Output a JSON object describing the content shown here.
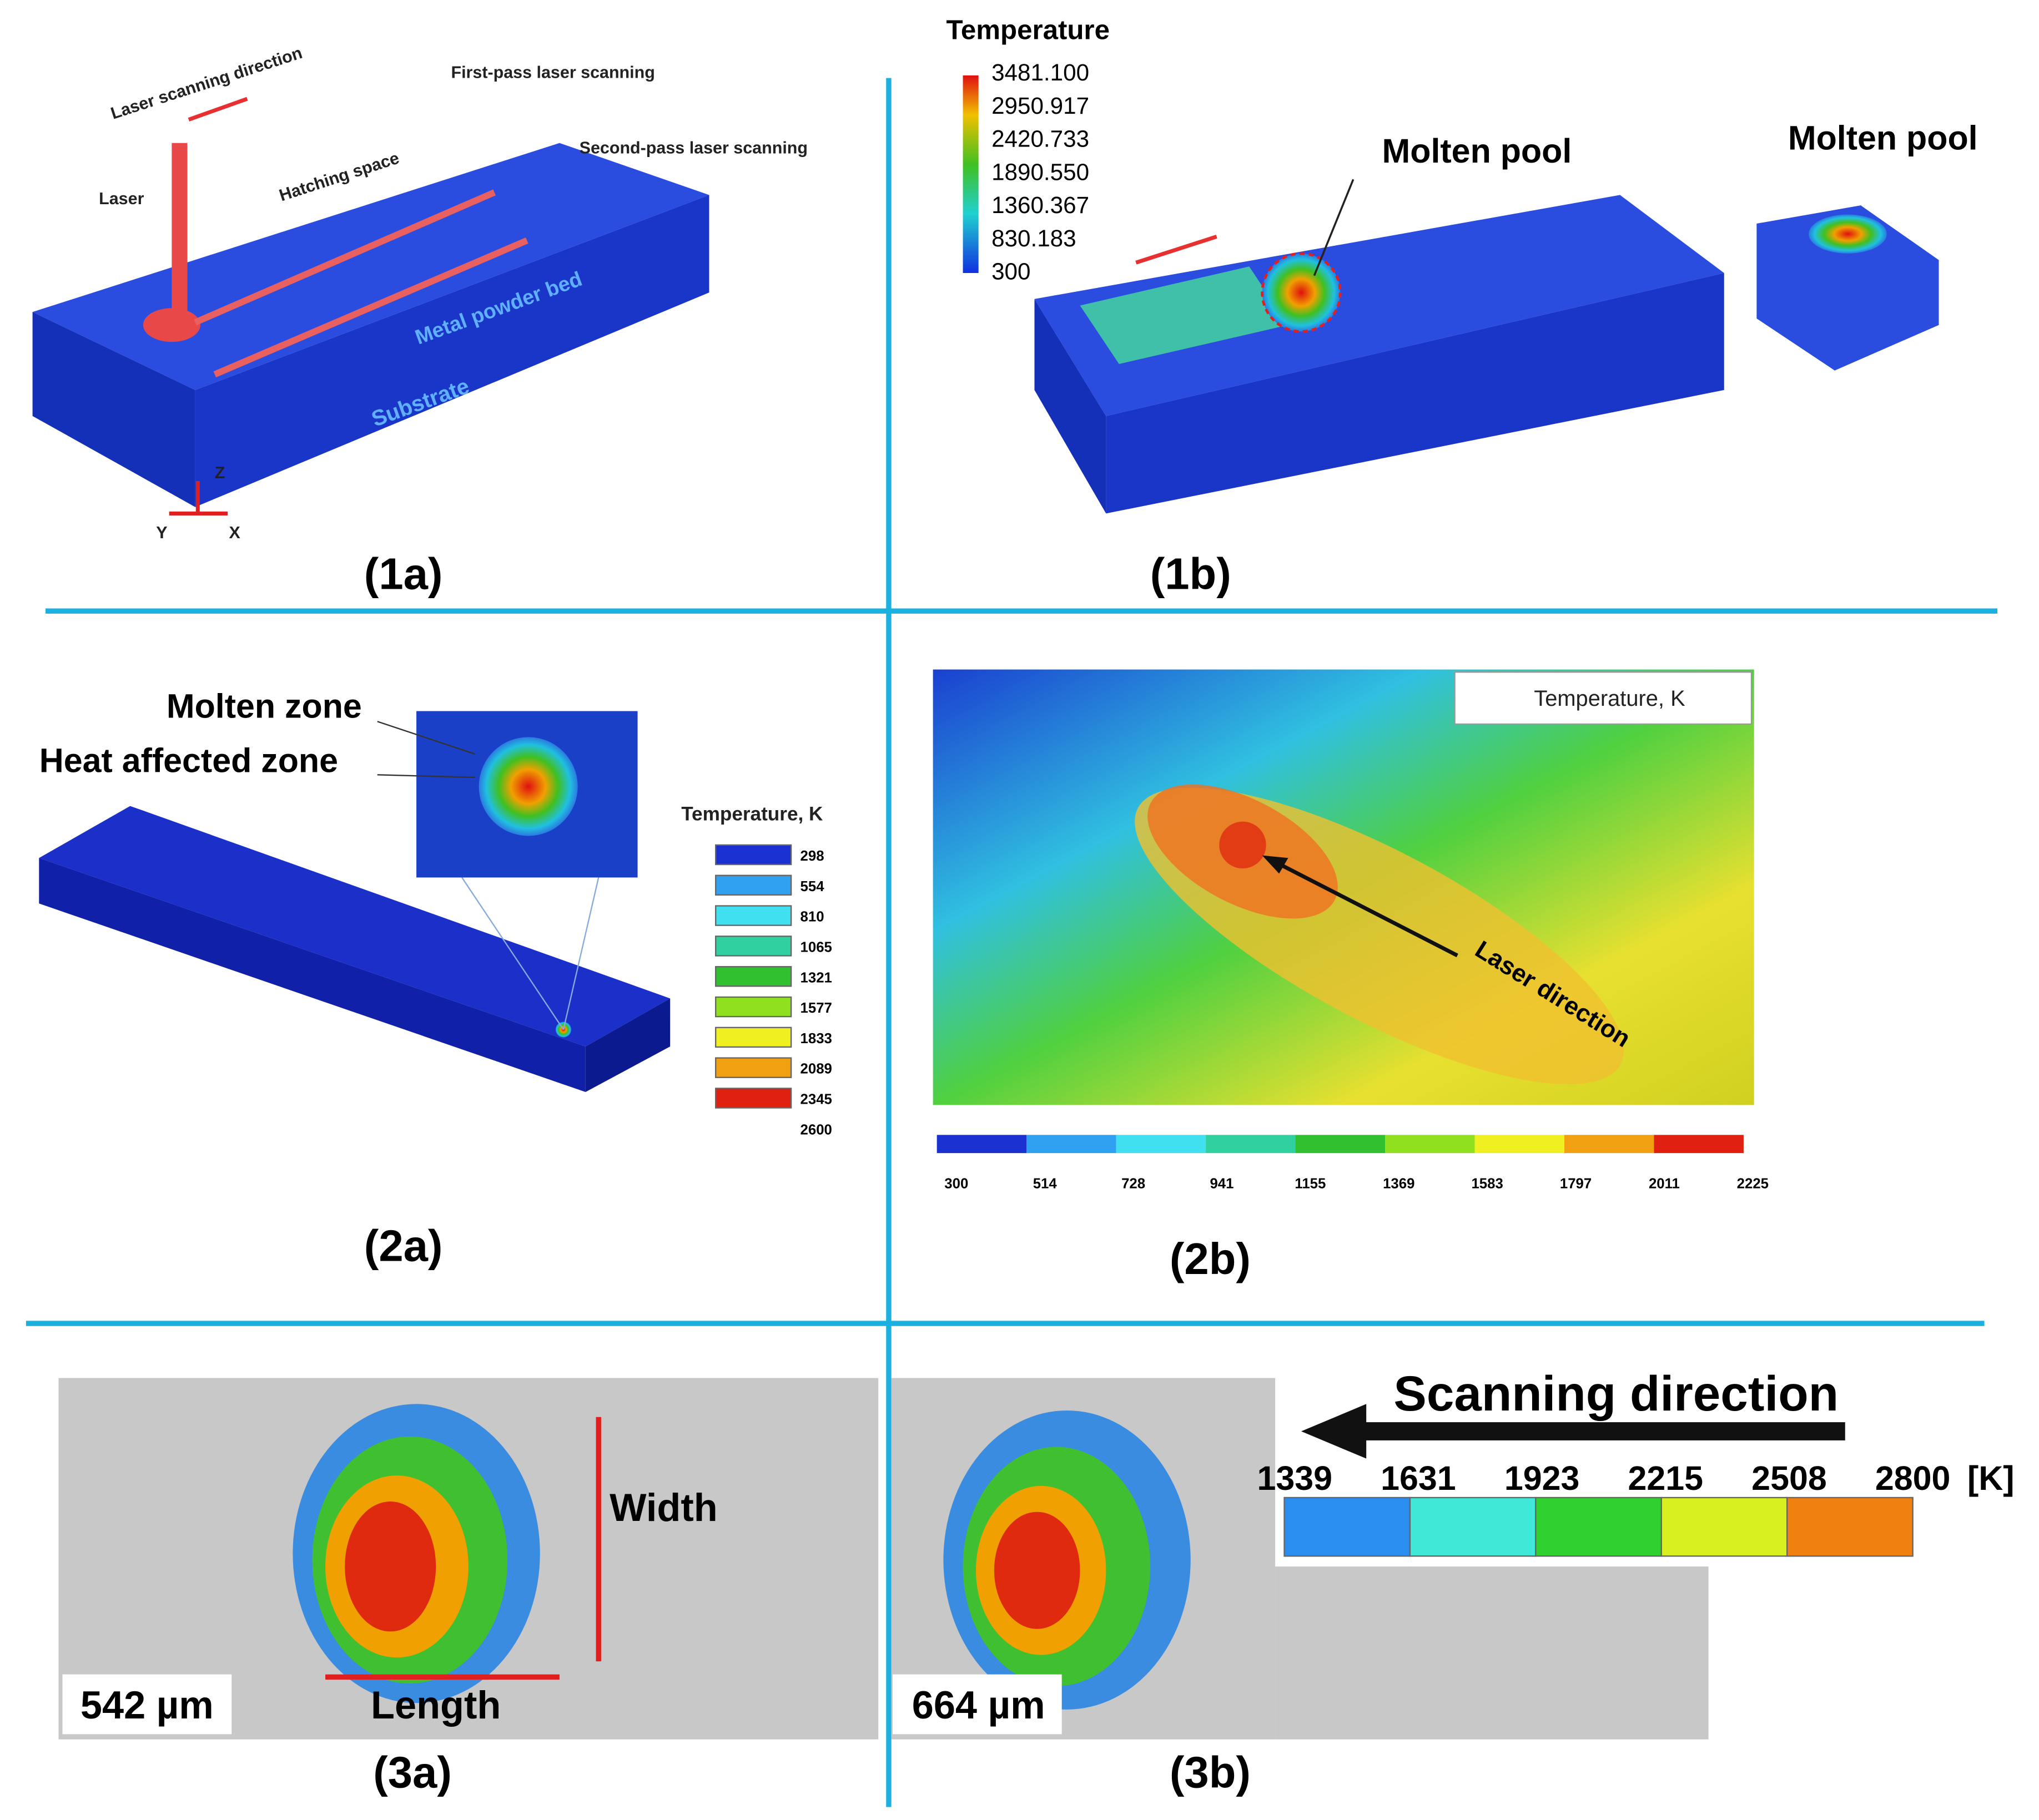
{
  "panel_1a": {
    "laser_scanning_direction": "Laser scanning direction",
    "laser": "Laser",
    "hatching_space": "Hatching space",
    "first_pass": "First-pass laser scanning",
    "second_pass": "Second-pass laser scanning",
    "powder_bed": "Metal powder bed",
    "substrate": "Substrate",
    "axis_z": "Z",
    "axis_y": "Y",
    "axis_x": "X",
    "caption": "(1a)"
  },
  "panel_1b": {
    "legend_title": "Temperature",
    "legend_ticks": [
      "3481.100",
      "2950.917",
      "2420.733",
      "1890.550",
      "1360.367",
      "830.183",
      "300"
    ],
    "molten_pool_label": "Molten pool",
    "inset_label": "Molten pool",
    "caption": "(1b)"
  },
  "panel_2a": {
    "molten_zone": "Molten zone",
    "heat_affected_zone": "Heat affected zone",
    "legend_title": "Temperature, K",
    "legend_ticks": [
      "298",
      "554",
      "810",
      "1065",
      "1321",
      "1577",
      "1833",
      "2089",
      "2345",
      "2600"
    ],
    "caption": "(2a)"
  },
  "panel_2b": {
    "legend_title": "Temperature, K",
    "laser_direction": "Laser direction",
    "colorbar_ticks": [
      "300",
      "514",
      "728",
      "941",
      "1155",
      "1369",
      "1583",
      "1797",
      "2011",
      "2225"
    ],
    "caption": "(2b)"
  },
  "panel_3a": {
    "width": "Width",
    "length": "Length",
    "scale": "542 µm",
    "caption": "(3a)"
  },
  "panel_3b": {
    "scale": "664 µm",
    "scanning_direction": "Scanning direction",
    "colorbar_ticks": [
      "1339",
      "1631",
      "1923",
      "2215",
      "2508",
      "2800"
    ],
    "unit": "[K]",
    "caption": "(3b)"
  }
}
